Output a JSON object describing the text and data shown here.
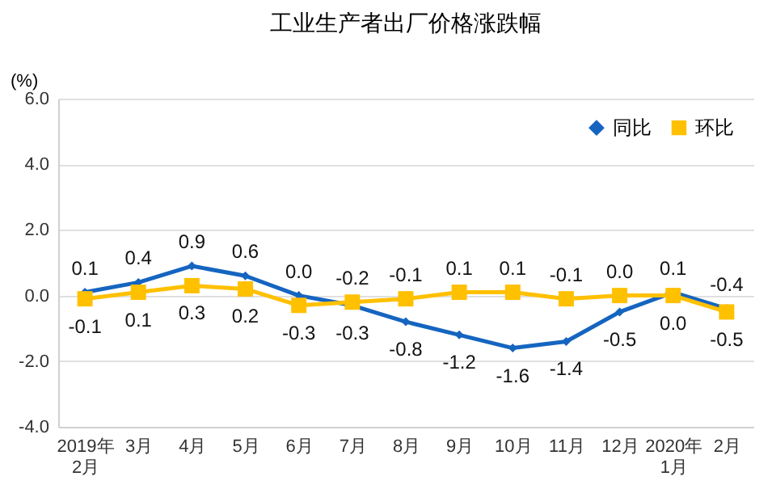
{
  "chart_data": {
    "type": "line",
    "title": "工业生产者出厂价格涨跌幅",
    "ylabel": "(%)",
    "categories": [
      "2019年\n2月",
      "3月",
      "4月",
      "5月",
      "6月",
      "7月",
      "8月",
      "9月",
      "10月",
      "11月",
      "12月",
      "2020年\n1月",
      "2月"
    ],
    "series": [
      {
        "name": "同比",
        "color": "#1565c0",
        "marker": "diamond",
        "values": [
          0.1,
          0.4,
          0.9,
          0.6,
          0.0,
          -0.3,
          -0.8,
          -1.2,
          -1.6,
          -1.4,
          -0.5,
          0.1,
          -0.4
        ],
        "value_labels": [
          "0.1",
          "0.4",
          "0.9",
          "0.6",
          "0.0",
          "-0.3",
          "-0.8",
          "-1.2",
          "-1.6",
          "-1.4",
          "-0.5",
          "0.1",
          "-0.4"
        ]
      },
      {
        "name": "环比",
        "color": "#ffc000",
        "marker": "square",
        "values": [
          -0.1,
          0.1,
          0.3,
          0.2,
          -0.3,
          -0.2,
          -0.1,
          0.1,
          0.1,
          -0.1,
          0.0,
          0.0,
          -0.5
        ],
        "value_labels": [
          "-0.1",
          "0.1",
          "0.3",
          "0.2",
          "-0.3",
          "-0.2",
          "-0.1",
          "0.1",
          "0.1",
          "-0.1",
          "0.0",
          "0.0",
          "-0.5"
        ]
      }
    ],
    "ylim": [
      -4,
      6
    ],
    "yticks": [
      {
        "value": -4,
        "label": "-4.0"
      },
      {
        "value": -2,
        "label": "-2.0"
      },
      {
        "value": 0,
        "label": "0.0"
      },
      {
        "value": 2,
        "label": "2.0"
      },
      {
        "value": 4,
        "label": "4.0"
      },
      {
        "value": 6,
        "label": "6.0"
      }
    ],
    "grid": "y",
    "legend": "top right",
    "line_style": "solid"
  }
}
